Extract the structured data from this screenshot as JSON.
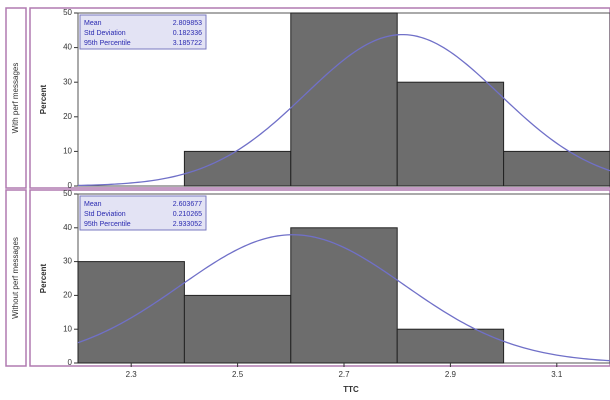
{
  "chart_data": {
    "type": "bar",
    "xlabel": "TTC",
    "x_ticks": [
      "2.3",
      "2.5",
      "2.7",
      "2.9",
      "3.1"
    ],
    "xlim": [
      2.2,
      3.2
    ],
    "bin_width": 0.2,
    "ylabel": "Percent",
    "y_ticks": [
      "0",
      "10",
      "20",
      "30",
      "40",
      "50"
    ],
    "ylim": [
      0,
      50
    ],
    "grid": false,
    "colors": {
      "bar": "#6d6d6d",
      "curve": "#7070c8",
      "stats_text": "#2a2ab0",
      "frame": "#b07ab0"
    },
    "panels": [
      {
        "label": "With perf messages",
        "bins": [
          {
            "from": 2.4,
            "to": 2.6,
            "value": 10
          },
          {
            "from": 2.6,
            "to": 2.8,
            "value": 50
          },
          {
            "from": 2.8,
            "to": 3.0,
            "value": 30
          },
          {
            "from": 3.0,
            "to": 3.2,
            "value": 10
          }
        ],
        "normal_fit": {
          "mean": 2.809853,
          "sd": 0.182336
        },
        "stats": [
          {
            "label": "Mean",
            "value": "2.809853"
          },
          {
            "label": "Std Deviation",
            "value": "0.182336"
          },
          {
            "label": "95th Percentile",
            "value": "3.185722"
          }
        ]
      },
      {
        "label": "Without perf messages",
        "bins": [
          {
            "from": 2.2,
            "to": 2.4,
            "value": 30
          },
          {
            "from": 2.4,
            "to": 2.6,
            "value": 20
          },
          {
            "from": 2.6,
            "to": 2.8,
            "value": 40
          },
          {
            "from": 2.8,
            "to": 3.0,
            "value": 10
          }
        ],
        "normal_fit": {
          "mean": 2.603677,
          "sd": 0.210265
        },
        "stats": [
          {
            "label": "Mean",
            "value": "2.603677"
          },
          {
            "label": "Std Deviation",
            "value": "0.210265"
          },
          {
            "label": "95th Percentile",
            "value": "2.933052"
          }
        ]
      }
    ]
  }
}
